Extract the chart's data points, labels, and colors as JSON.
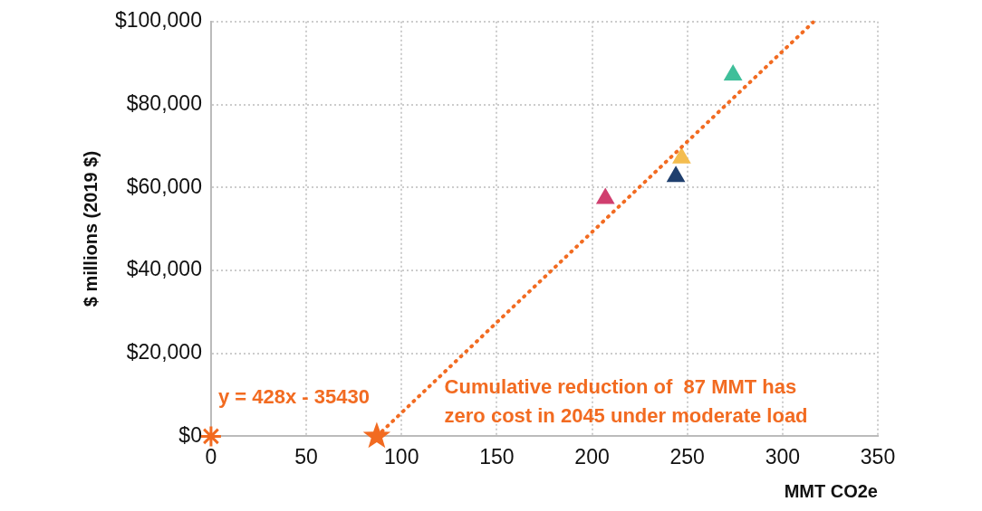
{
  "chart_data": {
    "type": "scatter",
    "xlabel": "MMT CO2e",
    "ylabel": "$ millions (2019 $)",
    "xlim": [
      0,
      350
    ],
    "xticks": [
      0,
      50,
      100,
      150,
      200,
      250,
      300,
      350
    ],
    "ylim": [
      0,
      100000
    ],
    "yticks": [
      {
        "value": 0,
        "label": "$0"
      },
      {
        "value": 20000,
        "label": "$20,000"
      },
      {
        "value": 40000,
        "label": "$40,000"
      },
      {
        "value": 60000,
        "label": "$60,000"
      },
      {
        "value": 80000,
        "label": "$80,000"
      },
      {
        "value": 100000,
        "label": "$100,000"
      }
    ],
    "grid": true,
    "legend": false,
    "series": [
      {
        "type": "line",
        "color": "#f26b21",
        "x": [
          87,
          316
        ],
        "values": [
          0,
          99800
        ],
        "line_style": "dotted",
        "marker": "none"
      },
      {
        "color": "#f26b21",
        "x": [
          0
        ],
        "values": [
          0
        ],
        "marker": "cross"
      },
      {
        "color": "#f26b21",
        "x": [
          87
        ],
        "values": [
          0
        ],
        "marker": "star"
      },
      {
        "color": "#d03f6f",
        "x": [
          207
        ],
        "values": [
          57300
        ],
        "marker": "triangle"
      },
      {
        "color": "#1f3f6e",
        "x": [
          244
        ],
        "values": [
          62600
        ],
        "marker": "triangle"
      },
      {
        "color": "#f4bd4f",
        "x": [
          247
        ],
        "values": [
          67100
        ],
        "marker": "triangle"
      },
      {
        "color": "#3fbf9a",
        "x": [
          274
        ],
        "values": [
          87100
        ],
        "marker": "triangle"
      }
    ],
    "annotations": [
      "y = 428x - 35430",
      "Cumulative reduction of  87 MMT has\nzero cost in 2045 under moderate load"
    ]
  }
}
